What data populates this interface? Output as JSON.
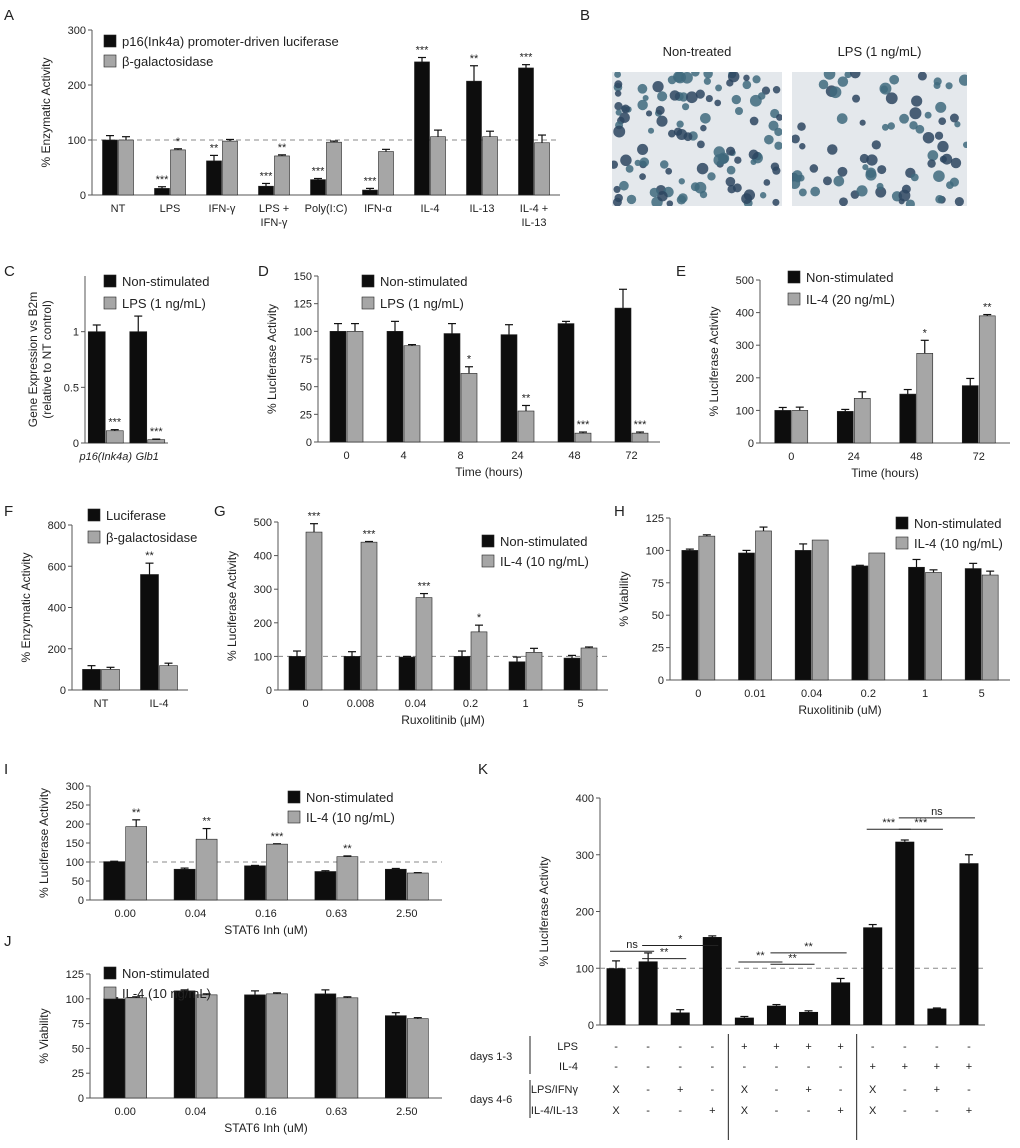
{
  "panel_labels": {
    "A": "A",
    "B": "B",
    "C": "C",
    "D": "D",
    "E": "E",
    "F": "F",
    "G": "G",
    "H": "H",
    "I": "I",
    "J": "J",
    "K": "K"
  },
  "microscopy": {
    "left_title": "Non-treated",
    "right_title": "LPS (1 ng/mL)"
  },
  "colors": {
    "black_bar": "#0d0d0d",
    "gray_bar": "#a6a6a6",
    "refline": "#888888"
  },
  "chart_data": [
    {
      "id": "A",
      "type": "bar",
      "ylabel": "% Enzymatic Activity",
      "xlabel": "",
      "ylim": [
        0,
        300
      ],
      "yticks": [
        0,
        100,
        200,
        300
      ],
      "refline": 100,
      "categories": [
        [
          "NT"
        ],
        [
          "LPS"
        ],
        [
          "IFN-γ"
        ],
        [
          "LPS +",
          "IFN-γ"
        ],
        [
          "Poly(I:C)"
        ],
        [
          "IFN-α"
        ],
        [
          "IL-4"
        ],
        [
          "IL-13"
        ],
        [
          "IL-4 +",
          "IL-13"
        ]
      ],
      "series": [
        {
          "name": "p16(Ink4a) promoter-driven luciferase",
          "values": [
            100,
            12,
            62,
            16,
            28,
            9,
            242,
            207,
            231
          ],
          "err": [
            8,
            3,
            10,
            5,
            2,
            3,
            8,
            28,
            6
          ],
          "sig": [
            "",
            "***",
            "**",
            "***",
            "***",
            "***",
            "***",
            "**",
            "***"
          ]
        },
        {
          "name": "β-galactosidase",
          "values": [
            100,
            82,
            98,
            71,
            96,
            79,
            106,
            106,
            95
          ],
          "err": [
            6,
            2,
            3,
            2,
            2,
            4,
            12,
            10,
            14
          ],
          "sig": [
            "",
            "*",
            "",
            "**",
            "",
            "",
            "",
            "",
            ""
          ]
        }
      ],
      "legend": "top"
    },
    {
      "id": "C",
      "type": "bar",
      "ylabel": "Gene Expression vs B2m",
      "ylabel2": "(relative to NT control)",
      "xlabel": "",
      "ylim": [
        0,
        1.5
      ],
      "yticks": [
        0,
        0.5,
        1
      ],
      "categories": [
        [
          "p16(Ink4a)"
        ],
        [
          "Glb1"
        ]
      ],
      "series": [
        {
          "name": "Non-stimulated",
          "values": [
            1.0,
            1.0
          ],
          "err": [
            0.06,
            0.14
          ],
          "sig": [
            "",
            ""
          ]
        },
        {
          "name": "LPS (1 ng/mL)",
          "values": [
            0.11,
            0.03
          ],
          "err": [
            0.01,
            0.005
          ],
          "sig": [
            "***",
            "***"
          ]
        }
      ],
      "legend": "top"
    },
    {
      "id": "D",
      "type": "bar",
      "ylabel": "% Luciferase Activity",
      "xlabel": "Time (hours)",
      "ylim": [
        0,
        150
      ],
      "yticks": [
        0,
        25,
        50,
        75,
        100,
        125,
        150
      ],
      "categories": [
        [
          "0"
        ],
        [
          "4"
        ],
        [
          "8"
        ],
        [
          "24"
        ],
        [
          "48"
        ],
        [
          "72"
        ]
      ],
      "series": [
        {
          "name": "Non-stimulated",
          "values": [
            100,
            100,
            98,
            97,
            107,
            121
          ],
          "err": [
            7,
            9,
            9,
            9,
            2,
            17
          ],
          "sig": [
            "",
            "",
            "",
            "",
            "",
            ""
          ]
        },
        {
          "name": "LPS (1 ng/mL)",
          "values": [
            100,
            87,
            62,
            28,
            8,
            8
          ],
          "err": [
            7,
            1,
            6,
            5,
            1,
            1
          ],
          "sig": [
            "",
            "",
            "*",
            "**",
            "***",
            "***"
          ]
        }
      ],
      "legend": "top"
    },
    {
      "id": "E",
      "type": "bar",
      "ylabel": "% Luciferase Activity",
      "xlabel": "Time (hours)",
      "ylim": [
        0,
        500
      ],
      "yticks": [
        0,
        100,
        200,
        300,
        400,
        500
      ],
      "categories": [
        [
          "0"
        ],
        [
          "24"
        ],
        [
          "48"
        ],
        [
          "72"
        ]
      ],
      "series": [
        {
          "name": "Non-stimulated",
          "values": [
            100,
            97,
            150,
            176
          ],
          "err": [
            9,
            6,
            14,
            22
          ],
          "sig": [
            "",
            "",
            "",
            ""
          ]
        },
        {
          "name": "IL-4 (20 ng/mL)",
          "values": [
            100,
            137,
            275,
            390
          ],
          "err": [
            10,
            20,
            40,
            4
          ],
          "sig": [
            "",
            "",
            "*",
            "**"
          ]
        }
      ],
      "legend": "top"
    },
    {
      "id": "F",
      "type": "bar",
      "ylabel": "% Enzymatic Activity",
      "xlabel": "",
      "ylim": [
        0,
        800
      ],
      "yticks": [
        0,
        200,
        400,
        600,
        800
      ],
      "categories": [
        [
          "NT"
        ],
        [
          "IL-4"
        ]
      ],
      "series": [
        {
          "name": "Luciferase",
          "values": [
            100,
            560
          ],
          "err": [
            18,
            55
          ],
          "sig": [
            "",
            "**"
          ]
        },
        {
          "name": "β-galactosidase",
          "values": [
            100,
            118
          ],
          "err": [
            10,
            12
          ],
          "sig": [
            "",
            ""
          ]
        }
      ],
      "legend": "top"
    },
    {
      "id": "G",
      "type": "bar",
      "ylabel": "% Luciferase Activity",
      "xlabel": "Ruxolitinib (μM)",
      "ylim": [
        0,
        500
      ],
      "yticks": [
        0,
        100,
        200,
        300,
        400,
        500
      ],
      "refline": 100,
      "categories": [
        [
          "0"
        ],
        [
          "0.008"
        ],
        [
          "0.04"
        ],
        [
          "0.2"
        ],
        [
          "1"
        ],
        [
          "5"
        ]
      ],
      "series": [
        {
          "name": "Non-stimulated",
          "values": [
            100,
            100,
            98,
            100,
            84,
            95
          ],
          "err": [
            16,
            14,
            2,
            16,
            14,
            8
          ],
          "sig": [
            "",
            "",
            "",
            "",
            "",
            ""
          ]
        },
        {
          "name": "IL-4 (10 ng/mL)",
          "values": [
            470,
            440,
            275,
            173,
            112,
            125
          ],
          "err": [
            25,
            2,
            12,
            20,
            12,
            3
          ],
          "sig": [
            "***",
            "***",
            "***",
            "*",
            "",
            ""
          ]
        }
      ],
      "legend": "right"
    },
    {
      "id": "H",
      "type": "bar",
      "ylabel": "% Viability",
      "xlabel": "Ruxolitinib (uM)",
      "ylim": [
        0,
        125
      ],
      "yticks": [
        0,
        25,
        50,
        75,
        100,
        125
      ],
      "categories": [
        [
          "0"
        ],
        [
          "0.01"
        ],
        [
          "0.04"
        ],
        [
          "0.2"
        ],
        [
          "1"
        ],
        [
          "5"
        ]
      ],
      "series": [
        {
          "name": "Non-stimulated",
          "values": [
            100,
            98,
            100,
            88,
            87,
            86
          ],
          "err": [
            1,
            2,
            5,
            0.5,
            6,
            4
          ],
          "sig": [
            "",
            "",
            "",
            "",
            "",
            ""
          ]
        },
        {
          "name": "IL-4 (10 ng/mL)",
          "values": [
            111,
            115,
            108,
            98,
            83,
            81
          ],
          "err": [
            1,
            3,
            0,
            0,
            2,
            3
          ],
          "sig": [
            "",
            "",
            "",
            "",
            "",
            ""
          ]
        }
      ],
      "legend": "right"
    },
    {
      "id": "I",
      "type": "bar",
      "ylabel": "% Luciferase Activity",
      "xlabel": "STAT6 Inh (uM)",
      "ylim": [
        0,
        300
      ],
      "yticks": [
        0,
        50,
        100,
        150,
        200,
        250,
        300
      ],
      "refline": 100,
      "categories": [
        [
          "0.00"
        ],
        [
          "0.04"
        ],
        [
          "0.16"
        ],
        [
          "0.63"
        ],
        [
          "2.50"
        ]
      ],
      "series": [
        {
          "name": "Non-stimulated",
          "values": [
            101,
            81,
            90,
            75,
            81
          ],
          "err": [
            1,
            3,
            1,
            2,
            2
          ],
          "sig": [
            "",
            "",
            "",
            "",
            ""
          ]
        },
        {
          "name": "IL-4 (10 ng/mL)",
          "values": [
            193,
            160,
            147,
            114,
            71
          ],
          "err": [
            18,
            28,
            1,
            2,
            1
          ],
          "sig": [
            "**",
            "**",
            "***",
            "**",
            ""
          ]
        }
      ],
      "legend": "right"
    },
    {
      "id": "J",
      "type": "bar",
      "ylabel": "% Viability",
      "xlabel": "STAT6 Inh (uM)",
      "ylim": [
        0,
        125
      ],
      "yticks": [
        0,
        25,
        50,
        75,
        100,
        125
      ],
      "categories": [
        [
          "0.00"
        ],
        [
          "0.04"
        ],
        [
          "0.16"
        ],
        [
          "0.63"
        ],
        [
          "2.50"
        ]
      ],
      "series": [
        {
          "name": "Non-stimulated",
          "values": [
            100,
            108,
            104,
            105,
            83
          ],
          "err": [
            1,
            1,
            4,
            4,
            3
          ],
          "sig": [
            "",
            "",
            "",
            "",
            ""
          ]
        },
        {
          "name": "IL-4 (10 ng/mL)",
          "values": [
            101,
            104,
            105,
            101,
            80
          ],
          "err": [
            1,
            1,
            1,
            1,
            1
          ],
          "sig": [
            "",
            "",
            "",
            "",
            ""
          ]
        }
      ],
      "legend": "top"
    },
    {
      "id": "K",
      "type": "bar",
      "ylabel": "% Luciferase Activity",
      "xlabel": "",
      "ylim": [
        0,
        400
      ],
      "yticks": [
        0,
        100,
        200,
        300,
        400
      ],
      "refline": 100,
      "values": [
        100,
        112,
        22,
        155,
        13,
        34,
        23,
        75,
        172,
        323,
        29,
        285
      ],
      "err": [
        13,
        15,
        5,
        2,
        2,
        2,
        2,
        7,
        5,
        3,
        1,
        15
      ],
      "sig_brackets": [
        {
          "from": 0,
          "to": 1,
          "label": "ns",
          "y": 130
        },
        {
          "from": 1,
          "to": 2,
          "label": "**",
          "y": 117
        },
        {
          "from": 1,
          "to": 3,
          "label": "*",
          "y": 140
        },
        {
          "from": 4,
          "to": 5,
          "label": "**",
          "y": 111
        },
        {
          "from": 5,
          "to": 6,
          "label": "**",
          "y": 107
        },
        {
          "from": 5,
          "to": 7,
          "label": "**",
          "y": 127
        },
        {
          "from": 8,
          "to": 9,
          "label": "***",
          "y": 345
        },
        {
          "from": 9,
          "to": 10,
          "label": "***",
          "y": 345
        },
        {
          "from": 9,
          "to": 11,
          "label": "ns",
          "y": 365
        }
      ],
      "table": {
        "group_labels": [
          "days 1-3",
          "days 4-6"
        ],
        "row_labels": [
          "LPS",
          "IL-4",
          "LPS/IFNγ",
          "IL-4/IL-13"
        ],
        "rows": [
          [
            "-",
            "-",
            "-",
            "-",
            "+",
            "+",
            "+",
            "+",
            "-",
            "-",
            "-",
            "-"
          ],
          [
            "-",
            "-",
            "-",
            "-",
            "-",
            "-",
            "-",
            "-",
            "+",
            "+",
            "+",
            "+"
          ],
          [
            "X",
            "-",
            "+",
            "-",
            "X",
            "-",
            "+",
            "-",
            "X",
            "-",
            "+",
            "-"
          ],
          [
            "X",
            "-",
            "-",
            "+",
            "X",
            "-",
            "-",
            "+",
            "X",
            "-",
            "-",
            "+"
          ]
        ]
      }
    }
  ]
}
